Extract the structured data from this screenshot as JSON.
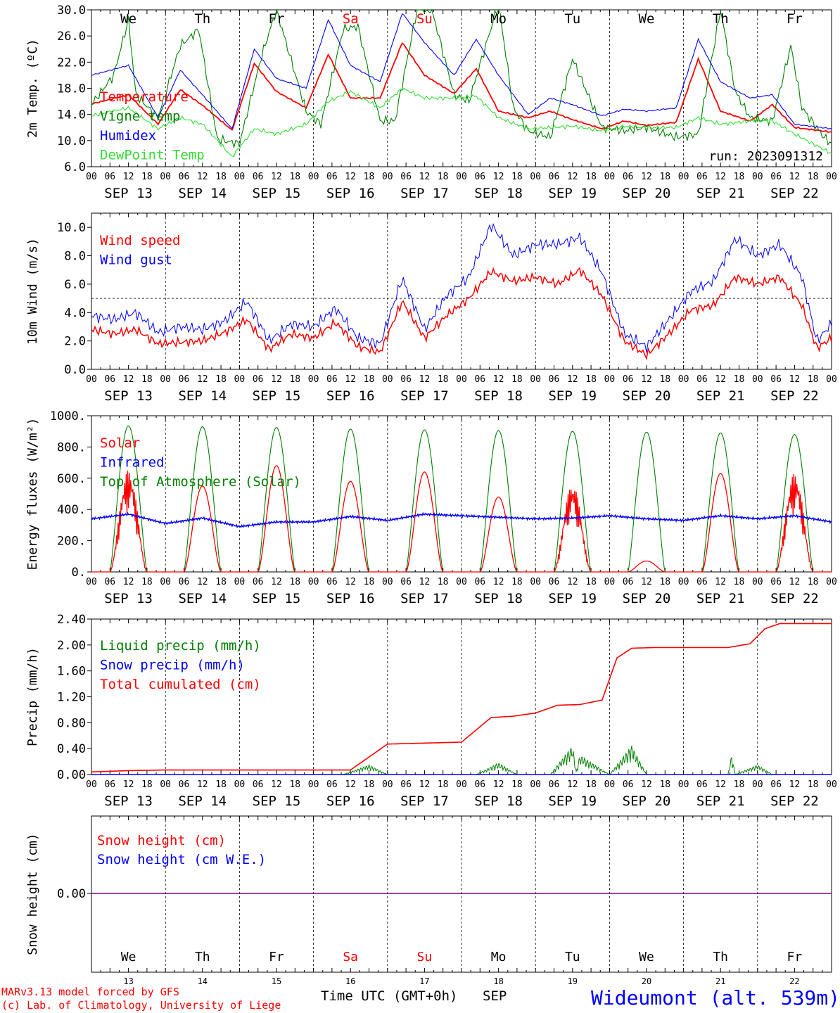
{
  "run_label": "run: 2023091312",
  "credits": {
    "line1": "MARv3.13 model forced by GFS",
    "line2": "(c) Lab. of Climatology, University of Liege"
  },
  "xlabel": "Time UTC (GMT+0h)",
  "xlabel_month": "SEP",
  "station": "Wideumont (alt. 539m)",
  "days": [
    {
      "date": "SEP 13",
      "dow": "We",
      "num": "13",
      "weekend": false
    },
    {
      "date": "SEP 14",
      "dow": "Th",
      "num": "14",
      "weekend": false
    },
    {
      "date": "SEP 15",
      "dow": "Fr",
      "num": "15",
      "weekend": false
    },
    {
      "date": "SEP 16",
      "dow": "Sa",
      "num": "16",
      "weekend": true
    },
    {
      "date": "SEP 17",
      "dow": "Su",
      "num": "17",
      "weekend": true
    },
    {
      "date": "SEP 18",
      "dow": "Mo",
      "num": "18",
      "weekend": false
    },
    {
      "date": "SEP 19",
      "dow": "Tu",
      "num": "19",
      "weekend": false
    },
    {
      "date": "SEP 20",
      "dow": "We",
      "num": "20",
      "weekend": false
    },
    {
      "date": "SEP 21",
      "dow": "Th",
      "num": "21",
      "weekend": false
    },
    {
      "date": "SEP 22",
      "dow": "Fr",
      "num": "22",
      "weekend": false
    }
  ],
  "hour_ticks": [
    "00",
    "06",
    "12",
    "18"
  ],
  "colors": {
    "red": "#ff0000",
    "green": "#008000",
    "blue": "#0000ff",
    "lightgreen": "#33dd33",
    "purple": "#800080",
    "text": "#000000"
  },
  "chart_data": [
    {
      "type": "line",
      "id": "temp",
      "ylabel": "2m Temp. (ºC)",
      "ylim": [
        6.0,
        30.0
      ],
      "yticks": [
        "6.0",
        "10.0",
        "14.0",
        "18.0",
        "22.0",
        "26.0",
        "30.0"
      ],
      "show_dow": true,
      "series": [
        {
          "name": "Temperature",
          "color": "#ff0000",
          "x": [
            0,
            0.5,
            0.9,
            1.2,
            1.5,
            1.9,
            2.2,
            2.5,
            2.9,
            3.2,
            3.5,
            3.9,
            4.2,
            4.5,
            4.9,
            5.2,
            5.5,
            5.9,
            6.2,
            6.5,
            6.9,
            7.2,
            7.5,
            7.9,
            8.2,
            8.5,
            8.9,
            9.2,
            9.5,
            10
          ],
          "y": [
            15.6,
            17.0,
            12.5,
            17.8,
            15.4,
            11.6,
            21.8,
            17.5,
            15.0,
            23.2,
            16.5,
            16.5,
            25.0,
            20.0,
            17.2,
            21.0,
            14.5,
            13.5,
            14.5,
            13.2,
            11.8,
            13.0,
            12.3,
            12.8,
            22.5,
            14.5,
            13.0,
            15.5,
            12.0,
            11.3
          ]
        },
        {
          "name": "Vigne temp",
          "color": "#008000",
          "x": [
            0,
            0.3,
            0.5,
            0.6,
            0.9,
            1.2,
            1.45,
            1.7,
            2.0,
            2.3,
            2.5,
            2.9,
            3.1,
            3.4,
            3.6,
            3.9,
            4.1,
            4.4,
            4.6,
            4.9,
            5.1,
            5.5,
            5.7,
            5.9,
            6.2,
            6.5,
            6.9,
            7.2,
            7.5,
            7.9,
            8.2,
            8.5,
            8.7,
            8.9,
            9.2,
            9.45,
            9.6,
            9.9,
            10
          ],
          "y": [
            15.5,
            20.0,
            28.5,
            17.0,
            13.5,
            24.5,
            27.0,
            10.2,
            9.5,
            23.0,
            30.0,
            14.5,
            12.5,
            27.0,
            27.5,
            13.0,
            13.0,
            30.0,
            30.0,
            17.0,
            16.0,
            31.0,
            15.0,
            11.5,
            10.5,
            22.5,
            12.0,
            11.5,
            12.0,
            10.5,
            11.0,
            30.0,
            17.5,
            13.5,
            13.0,
            24.5,
            15.0,
            10.5,
            9.5
          ]
        },
        {
          "name": "Humidex",
          "color": "#0000ff",
          "x": [
            0,
            0.5,
            0.9,
            1.2,
            1.5,
            1.9,
            2.2,
            2.5,
            2.9,
            3.2,
            3.5,
            3.9,
            4.2,
            4.5,
            4.9,
            5.2,
            5.5,
            5.9,
            6.2,
            6.5,
            6.9,
            7.2,
            7.5,
            7.9,
            8.2,
            8.5,
            8.9,
            9.2,
            9.5,
            10
          ],
          "y": [
            20.0,
            21.5,
            13.5,
            20.8,
            17.0,
            11.8,
            24.0,
            19.5,
            18.0,
            28.5,
            21.5,
            19.0,
            29.5,
            25.0,
            20.0,
            25.5,
            20.0,
            14.0,
            16.5,
            15.5,
            13.8,
            14.8,
            14.5,
            15.0,
            25.5,
            19.0,
            16.5,
            17.0,
            12.5,
            11.8
          ]
        },
        {
          "name": "DewPoint Temp",
          "color": "#33dd33",
          "x": [
            0,
            0.5,
            0.9,
            1.2,
            1.5,
            1.9,
            2.2,
            2.5,
            2.9,
            3.2,
            3.5,
            3.9,
            4.2,
            4.5,
            4.9,
            5.2,
            5.5,
            5.9,
            6.2,
            6.5,
            6.9,
            7.2,
            7.5,
            7.9,
            8.2,
            8.5,
            8.9,
            9.2,
            9.5,
            10
          ],
          "y": [
            13.8,
            15.0,
            11.8,
            13.5,
            12.5,
            7.5,
            11.8,
            11.0,
            12.5,
            16.0,
            17.5,
            15.0,
            18.0,
            16.5,
            16.5,
            16.8,
            13.5,
            11.8,
            12.0,
            12.2,
            11.5,
            12.2,
            12.0,
            12.0,
            13.5,
            12.5,
            13.0,
            13.0,
            11.0,
            8.0
          ]
        }
      ]
    },
    {
      "type": "line",
      "id": "wind",
      "ylabel": "10m Wind (m/s)",
      "ylim": [
        0,
        11
      ],
      "yticks": [
        "0.0",
        "2.0",
        "4.0",
        "6.0",
        "8.0",
        "10.0"
      ],
      "ref_line": 5.0,
      "series": [
        {
          "name": "Wind speed",
          "color": "#ff0000",
          "x": [
            0,
            0.3,
            0.6,
            0.9,
            1.2,
            1.5,
            1.8,
            2.1,
            2.4,
            2.7,
            3.0,
            3.3,
            3.6,
            3.9,
            4.2,
            4.5,
            4.8,
            5.1,
            5.4,
            5.7,
            6.0,
            6.3,
            6.6,
            6.9,
            7.2,
            7.5,
            7.8,
            8.1,
            8.4,
            8.7,
            9.0,
            9.3,
            9.6,
            9.8,
            10
          ],
          "y": [
            2.8,
            2.5,
            2.8,
            1.8,
            1.9,
            2.0,
            2.6,
            3.5,
            1.4,
            2.5,
            2.2,
            3.3,
            1.6,
            1.2,
            4.8,
            2.2,
            3.8,
            5.0,
            6.9,
            6.2,
            6.5,
            6.0,
            7.0,
            5.2,
            2.0,
            1.0,
            2.5,
            4.2,
            4.5,
            6.5,
            6.0,
            6.5,
            4.5,
            1.5,
            2.2
          ]
        },
        {
          "name": "Wind gust",
          "color": "#0000ff",
          "x": [
            0,
            0.3,
            0.6,
            0.9,
            1.2,
            1.5,
            1.8,
            2.1,
            2.4,
            2.7,
            3.0,
            3.3,
            3.6,
            3.9,
            4.2,
            4.5,
            4.8,
            5.1,
            5.4,
            5.7,
            6.0,
            6.3,
            6.6,
            6.9,
            7.2,
            7.5,
            7.8,
            8.1,
            8.4,
            8.7,
            9.0,
            9.3,
            9.6,
            9.8,
            10
          ],
          "y": [
            3.8,
            3.5,
            4.0,
            2.6,
            3.0,
            2.8,
            3.4,
            4.8,
            2.0,
            3.2,
            3.0,
            4.3,
            2.2,
            1.8,
            6.4,
            2.8,
            5.2,
            6.5,
            10.2,
            8.0,
            8.8,
            8.8,
            9.3,
            6.8,
            2.5,
            1.6,
            3.5,
            5.5,
            6.2,
            9.2,
            8.0,
            8.8,
            6.5,
            2.0,
            3.2
          ]
        }
      ]
    },
    {
      "type": "line",
      "id": "energy",
      "ylabel": "Energy fluxes (W/m²)",
      "ylim": [
        0,
        1000
      ],
      "yticks": [
        "0.",
        "200.",
        "400.",
        "600.",
        "800.",
        "1000."
      ],
      "series": [
        {
          "name": "Solar",
          "color": "#ff0000",
          "daily_peaks": [
            650,
            550,
            680,
            580,
            640,
            480,
            560,
            70,
            630,
            630
          ]
        },
        {
          "name": "Infrared",
          "color": "#0000ff",
          "x": [
            0,
            0.5,
            1.0,
            1.5,
            2.0,
            2.5,
            3.0,
            3.5,
            4.0,
            4.5,
            5.0,
            5.5,
            6.0,
            6.5,
            7.0,
            7.5,
            8.0,
            8.5,
            9.0,
            9.5,
            10
          ],
          "y": [
            340,
            370,
            310,
            345,
            290,
            320,
            320,
            355,
            330,
            370,
            360,
            350,
            340,
            345,
            360,
            340,
            330,
            360,
            340,
            360,
            320
          ]
        },
        {
          "name": "Top of Atmosphere (Solar)",
          "color": "#008000",
          "daily_peaks": [
            935,
            930,
            925,
            915,
            910,
            905,
            900,
            895,
            890,
            880
          ]
        }
      ]
    },
    {
      "type": "line",
      "id": "precip",
      "ylabel": "Precip (mm/h)",
      "ylim": [
        0,
        2.4
      ],
      "yticks": [
        "0.00",
        "0.40",
        "0.80",
        "1.20",
        "1.60",
        "2.00",
        "2.40"
      ],
      "series": [
        {
          "name": "Liquid precip (mm/h)",
          "color": "#008000",
          "x": [
            0,
            3.4,
            3.75,
            4.0,
            5.2,
            5.5,
            5.75,
            6.2,
            6.5,
            6.55,
            6.6,
            7.0,
            7.3,
            7.5,
            8.6,
            8.65,
            8.7,
            9.0,
            9.2,
            10
          ],
          "y": [
            0,
            0,
            0.15,
            0,
            0,
            0.18,
            0,
            0,
            0.45,
            0.05,
            0.3,
            0,
            0.45,
            0,
            0,
            0.3,
            0,
            0.15,
            0,
            0
          ]
        },
        {
          "name": "Snow precip (mm/h)",
          "color": "#0000ff",
          "x": [
            0,
            10
          ],
          "y": [
            0,
            0
          ]
        },
        {
          "name": "Total cumulated (cm)",
          "color": "#ff0000",
          "x": [
            0,
            0.5,
            1.0,
            3.5,
            4.0,
            5.0,
            5.4,
            5.7,
            6.0,
            6.3,
            6.6,
            6.9,
            7.1,
            7.3,
            7.6,
            8.6,
            8.9,
            9.1,
            9.3,
            10
          ],
          "y": [
            0.04,
            0.06,
            0.07,
            0.07,
            0.47,
            0.5,
            0.88,
            0.9,
            0.95,
            1.07,
            1.08,
            1.15,
            1.8,
            1.95,
            1.96,
            1.96,
            2.02,
            2.25,
            2.33,
            2.33
          ]
        }
      ]
    },
    {
      "type": "line",
      "id": "snow",
      "ylabel": "Snow height (cm)",
      "yticks": [
        "0.00"
      ],
      "show_day_nums": true,
      "series": [
        {
          "name": "Snow height (cm)",
          "color": "#ff0000",
          "x": [
            0,
            10
          ],
          "y": [
            0,
            0
          ]
        },
        {
          "name": "Snow height (cm W.E.)",
          "color": "#0000ff",
          "x": [
            0,
            10
          ],
          "y": [
            0,
            0
          ]
        }
      ]
    }
  ]
}
